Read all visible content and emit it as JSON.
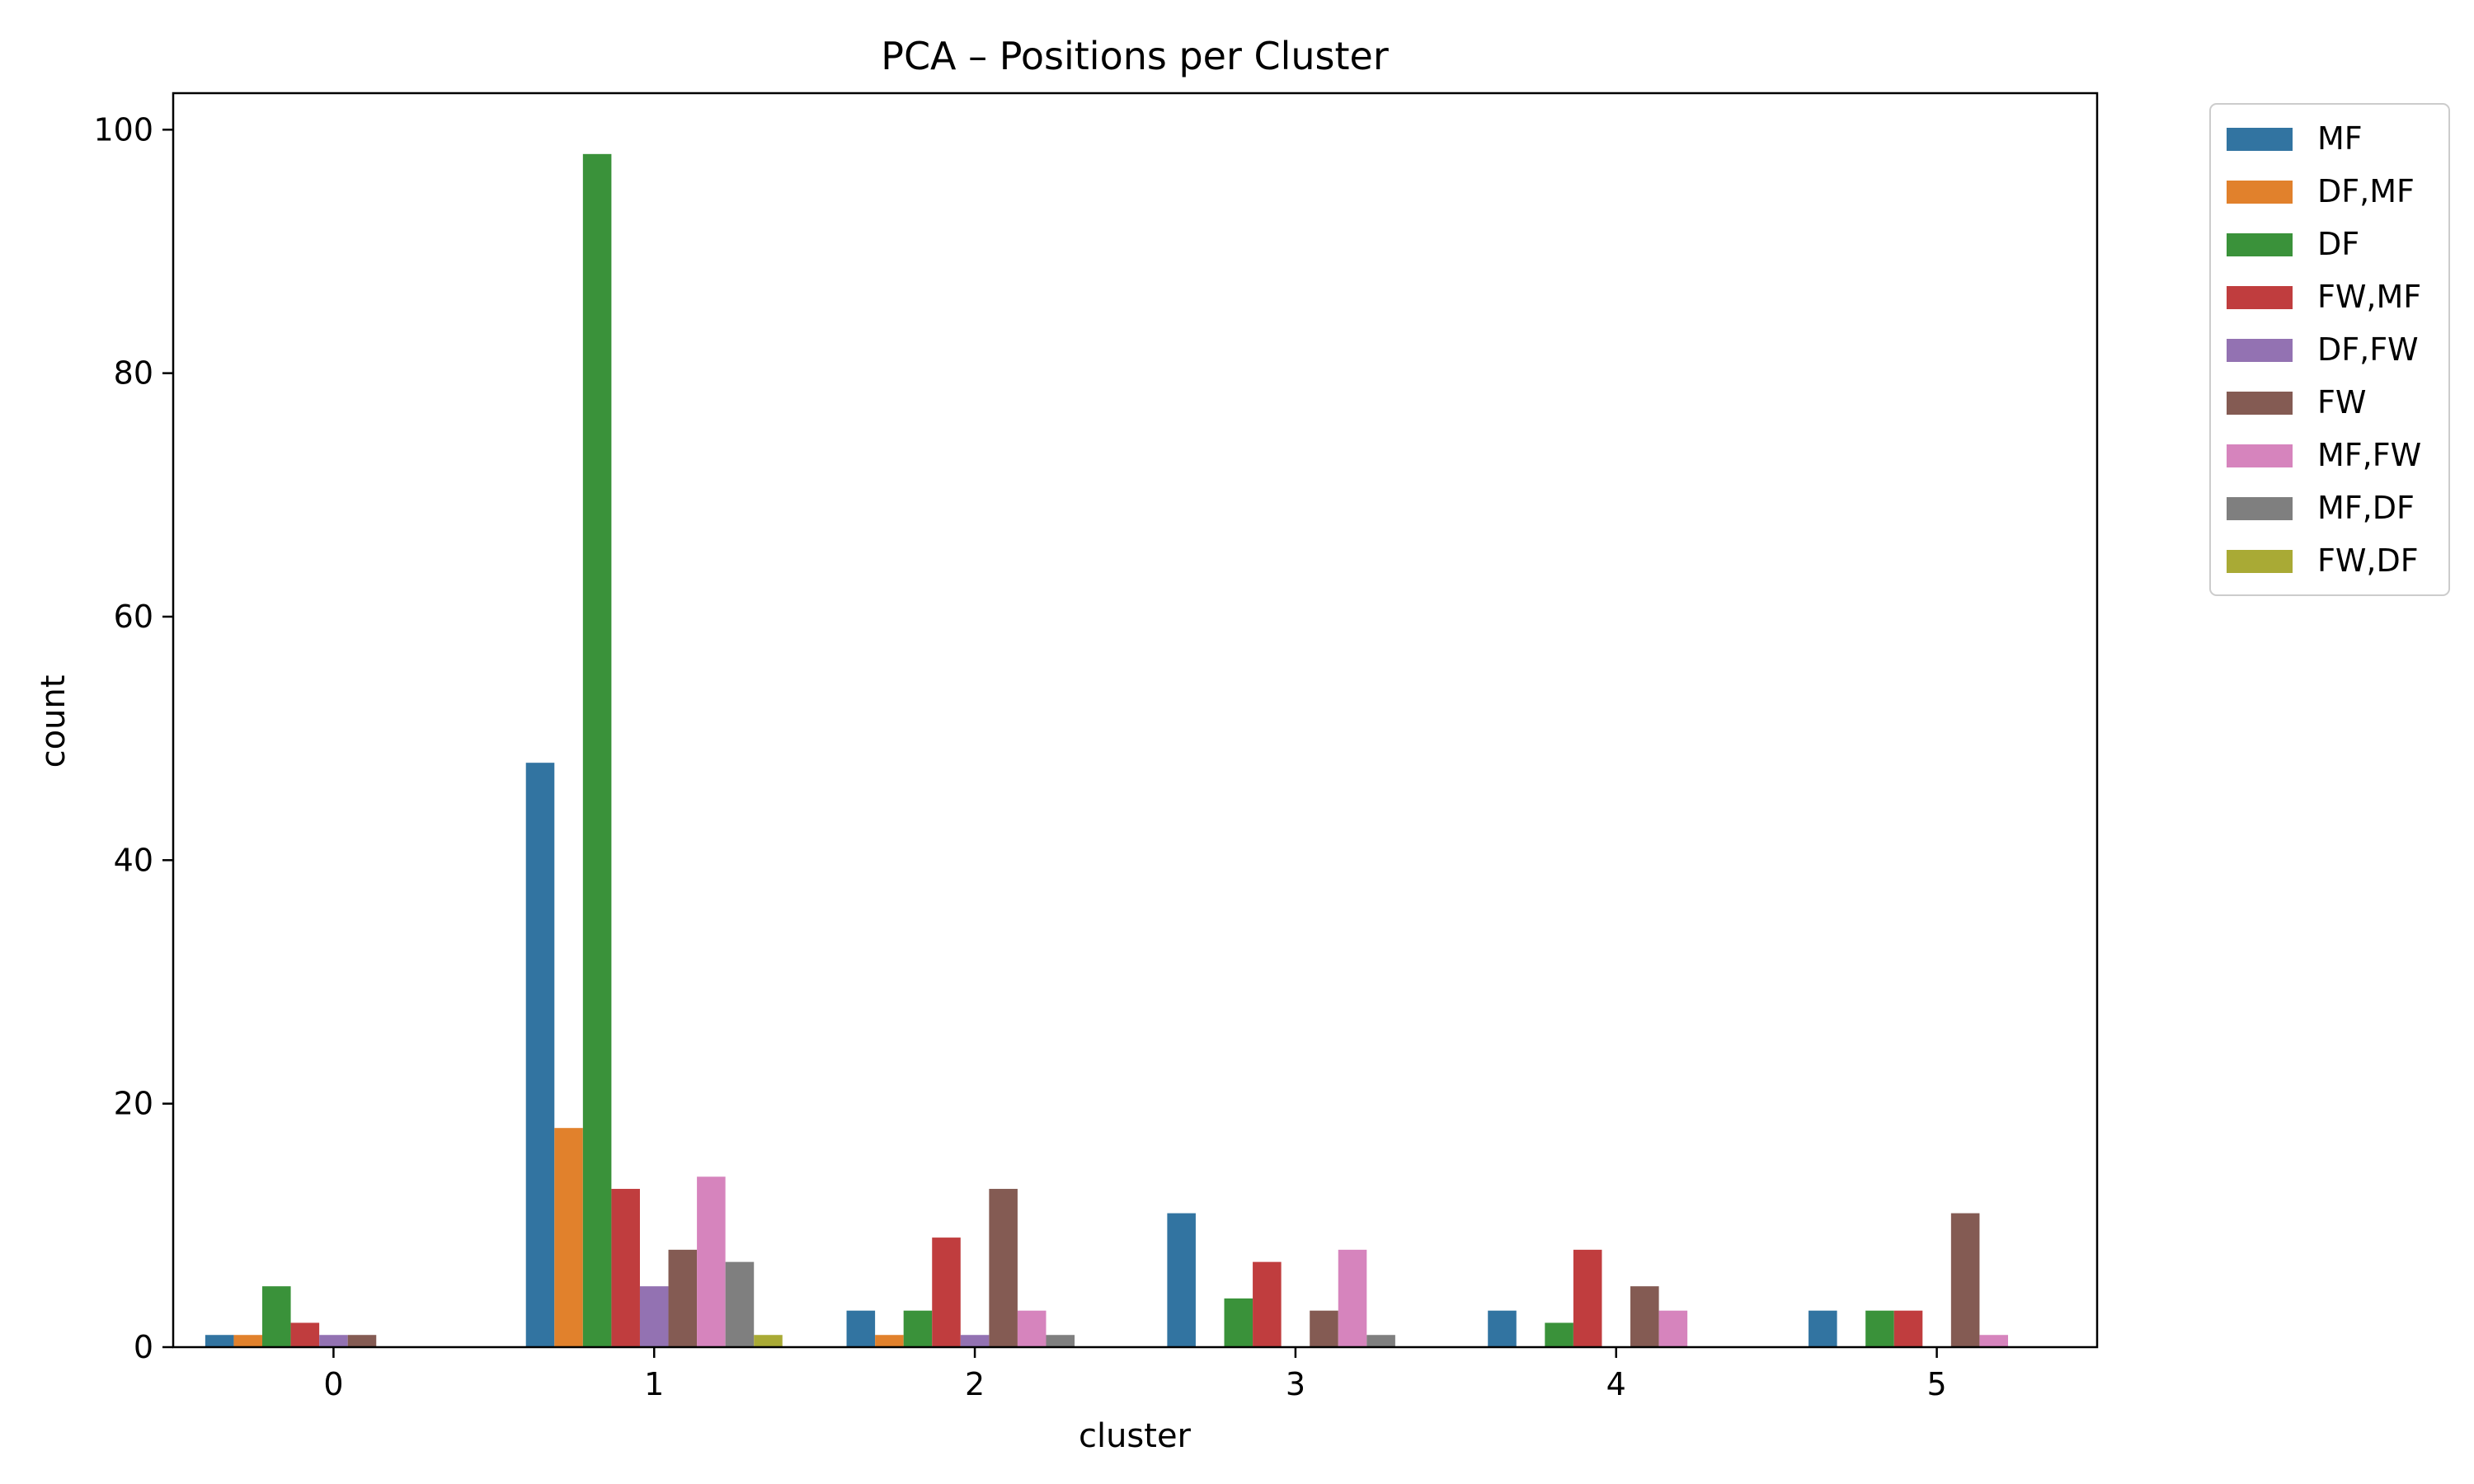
{
  "chart_data": {
    "type": "bar",
    "title": "PCA – Positions per Cluster",
    "xlabel": "cluster",
    "ylabel": "count",
    "categories": [
      "0",
      "1",
      "2",
      "3",
      "4",
      "5"
    ],
    "ylim": [
      0,
      103
    ],
    "yticks": [
      0,
      20,
      40,
      60,
      80,
      100
    ],
    "grid": false,
    "legend_position": "outside-top-right",
    "series": [
      {
        "name": "MF",
        "color": "#3274a1",
        "values": [
          1,
          48,
          3,
          11,
          3,
          3
        ]
      },
      {
        "name": "DF,MF",
        "color": "#e1812c",
        "values": [
          1,
          18,
          1,
          0,
          0,
          0
        ]
      },
      {
        "name": "DF",
        "color": "#3a923a",
        "values": [
          5,
          98,
          3,
          4,
          2,
          3
        ]
      },
      {
        "name": "FW,MF",
        "color": "#c03d3e",
        "values": [
          2,
          13,
          9,
          7,
          8,
          3
        ]
      },
      {
        "name": "DF,FW",
        "color": "#9372b2",
        "values": [
          1,
          5,
          1,
          0,
          0,
          0
        ]
      },
      {
        "name": "FW",
        "color": "#845b53",
        "values": [
          1,
          8,
          13,
          3,
          5,
          11
        ]
      },
      {
        "name": "MF,FW",
        "color": "#d684bd",
        "values": [
          0,
          14,
          3,
          8,
          3,
          1
        ]
      },
      {
        "name": "MF,DF",
        "color": "#7f7f7f",
        "values": [
          0,
          7,
          1,
          1,
          0,
          0
        ]
      },
      {
        "name": "FW,DF",
        "color": "#a9aa35",
        "values": [
          0,
          1,
          0,
          0,
          0,
          0
        ]
      }
    ]
  }
}
